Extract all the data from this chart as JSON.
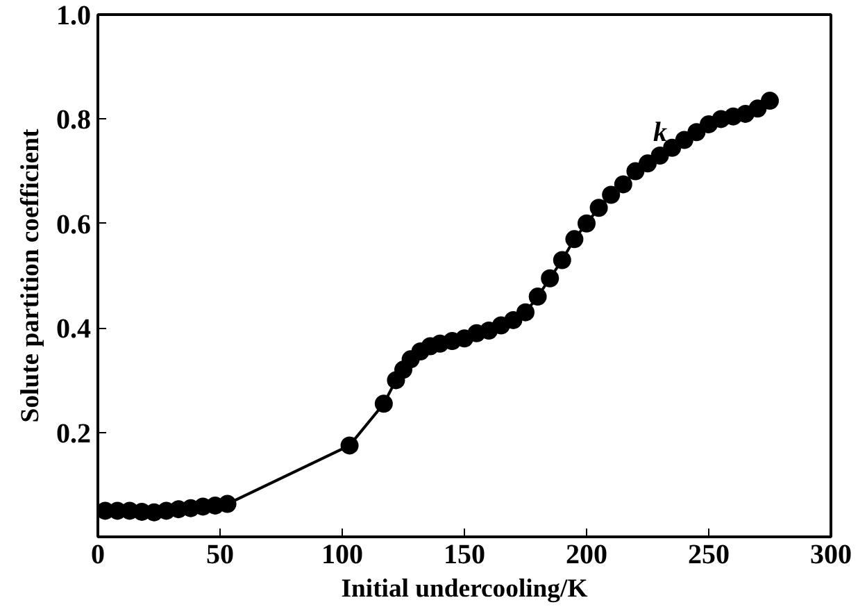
{
  "chart_data": {
    "type": "line",
    "xlabel": "Initial undercooling/K",
    "ylabel": "Solute partition coefficient",
    "xlim": [
      0,
      300
    ],
    "ylim": [
      0,
      1.0
    ],
    "xticks": [
      0,
      50,
      100,
      150,
      200,
      250,
      300
    ],
    "yticks": [
      0.2,
      0.4,
      0.6,
      0.8,
      {
        "value": 1.0,
        "label": "1.0"
      }
    ],
    "marker": "circle",
    "line_style": "solid",
    "grid": false,
    "annotations": [
      "k"
    ],
    "series": [
      {
        "color": "#000000",
        "x": [
          3,
          8,
          13,
          18,
          23,
          28,
          33,
          38,
          43,
          48,
          53,
          103,
          117,
          122,
          125,
          128,
          132,
          136,
          140,
          145,
          150,
          155,
          160,
          165,
          170,
          175,
          180,
          185,
          190,
          195,
          200,
          205,
          210,
          215,
          220,
          225,
          230,
          235,
          240,
          245,
          250,
          255,
          260,
          265,
          270,
          275
        ],
        "values": [
          0.05,
          0.05,
          0.05,
          0.048,
          0.047,
          0.05,
          0.053,
          0.055,
          0.058,
          0.06,
          0.063,
          0.175,
          0.255,
          0.3,
          0.32,
          0.34,
          0.355,
          0.365,
          0.37,
          0.375,
          0.38,
          0.39,
          0.395,
          0.405,
          0.415,
          0.43,
          0.46,
          0.495,
          0.53,
          0.57,
          0.6,
          0.63,
          0.655,
          0.675,
          0.7,
          0.715,
          0.73,
          0.745,
          0.76,
          0.775,
          0.79,
          0.8,
          0.805,
          0.81,
          0.82,
          0.835
        ]
      }
    ]
  }
}
